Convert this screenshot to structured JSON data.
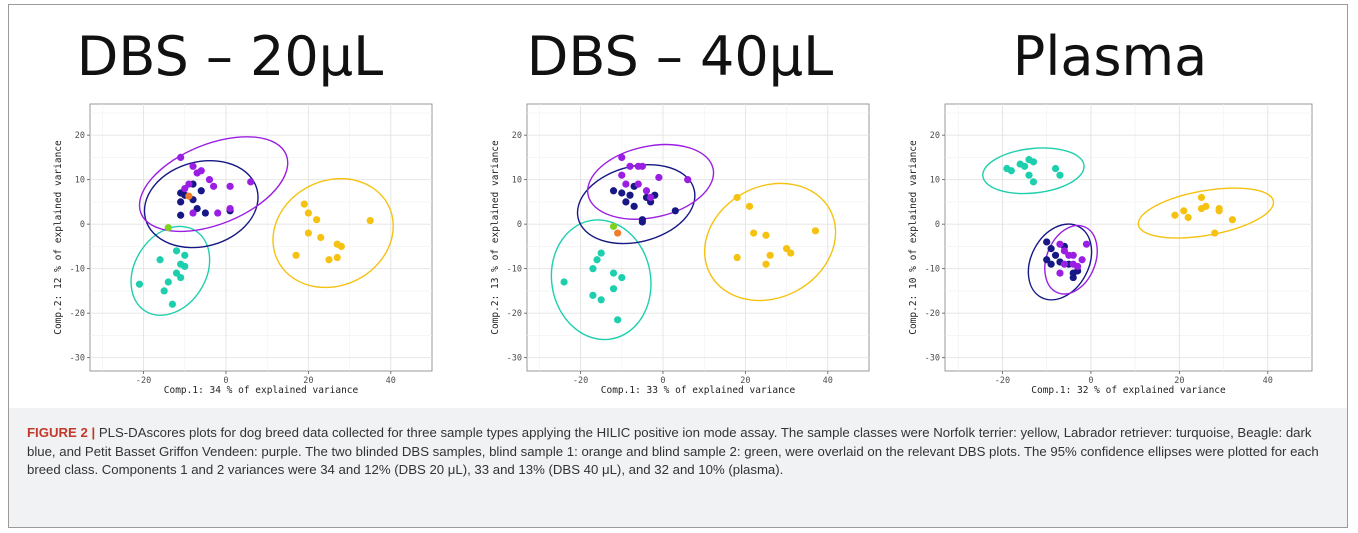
{
  "panels": [
    {
      "title": "DBS – 20μL",
      "xlabel": "Comp.1: 34 % of explained variance",
      "ylabel": "Comp.2: 12 % of explained variance"
    },
    {
      "title": "DBS – 40μL",
      "xlabel": "Comp.1: 33 % of explained variance",
      "ylabel": "Comp.2: 13 % of explained variance"
    },
    {
      "title": "Plasma",
      "xlabel": "Comp.1: 32 % of explained variance",
      "ylabel": "Comp.2: 10 % of explained variance"
    }
  ],
  "caption": {
    "label": "FIGURE 2 |",
    "text": " PLS-DAscores plots for dog breed data collected for three sample types applying the HILIC positive ion mode assay. The sample classes were Norfolk terrier: yellow, Labrador retriever: turquoise, Beagle: dark blue, and Petit Basset Griffon Vendeen: purple. The two blinded DBS samples, blind sample 1: orange and blind sample 2: green, were overlaid on the relevant DBS plots. The 95% confidence ellipses were plotted for each breed class. Components 1 and 2 variances were 34 and 12% (DBS 20 μL), 33 and 13% (DBS 40 μL), and 32 and 10% (plasma)."
  },
  "colors": {
    "yellow": "#f5c211",
    "turquoise": "#1ecfae",
    "darkblue": "#171785",
    "purple": "#9b1ee3",
    "orange": "#f07d2a",
    "green": "#7ed321"
  },
  "chart_data": [
    {
      "type": "scatter",
      "title": "DBS – 20μL",
      "xlabel": "Comp.1: 34 % of explained variance",
      "ylabel": "Comp.2: 12 % of explained variance",
      "xlim": [
        -33,
        50
      ],
      "ylim": [
        -33,
        27
      ],
      "xticks": [
        -20,
        0,
        20,
        40
      ],
      "yticks": [
        -30,
        -20,
        -10,
        0,
        10,
        20
      ],
      "grid": true,
      "series": [
        {
          "color": "#f5c211",
          "points": [
            [
              19,
              4.5
            ],
            [
              20,
              2.5
            ],
            [
              22,
              1
            ],
            [
              20,
              -2
            ],
            [
              17,
              -7
            ],
            [
              23,
              -3
            ],
            [
              27,
              -4.5
            ],
            [
              28,
              -5
            ],
            [
              27,
              -7.5
            ],
            [
              25,
              -8
            ],
            [
              35,
              0.8
            ]
          ],
          "ellipse": {
            "cx": 26,
            "cy": -2,
            "rx": 15,
            "ry": 11.8,
            "angle": -26
          }
        },
        {
          "color": "#1ecfae",
          "points": [
            [
              -21,
              -13.5
            ],
            [
              -16,
              -8
            ],
            [
              -15,
              -15
            ],
            [
              -14,
              -13
            ],
            [
              -13,
              -18
            ],
            [
              -12,
              -6
            ],
            [
              -12,
              -11
            ],
            [
              -11,
              -9
            ],
            [
              -11,
              -12
            ],
            [
              -10,
              -7
            ],
            [
              -10,
              -9.5
            ]
          ],
          "ellipse": {
            "cx": -13.5,
            "cy": -10.5,
            "rx": 11.5,
            "ry": 8,
            "angle": -58
          }
        },
        {
          "color": "#171785",
          "points": [
            [
              -11,
              7
            ],
            [
              -11,
              5
            ],
            [
              -10,
              6.5
            ],
            [
              -8,
              5.5
            ],
            [
              -11,
              2
            ],
            [
              -7,
              3.5
            ],
            [
              -5,
              2.5
            ],
            [
              -6,
              7.5
            ],
            [
              -8,
              9
            ],
            [
              1,
              3
            ]
          ],
          "ellipse": {
            "cx": -6,
            "cy": 4.5,
            "rx": 14,
            "ry": 9.5,
            "angle": -15
          }
        },
        {
          "color": "#9b1ee3",
          "points": [
            [
              -11,
              15
            ],
            [
              -8,
              13
            ],
            [
              -7,
              11.5
            ],
            [
              -6,
              12
            ],
            [
              -4,
              10
            ],
            [
              -3,
              8.5
            ],
            [
              -9,
              9
            ],
            [
              -10,
              8
            ],
            [
              -2,
              2.5
            ],
            [
              1,
              8.5
            ],
            [
              1,
              3.5
            ],
            [
              6,
              9.5
            ],
            [
              -8,
              2.5
            ]
          ],
          "ellipse": {
            "cx": -3,
            "cy": 9,
            "rx": 19,
            "ry": 9,
            "angle": -22
          }
        },
        {
          "color": "#f07d2a",
          "points": [
            [
              -9,
              6.3
            ]
          ]
        },
        {
          "color": "#7ed321",
          "points": [
            [
              -14,
              -0.8
            ]
          ]
        }
      ]
    },
    {
      "type": "scatter",
      "title": "DBS – 40μL",
      "xlabel": "Comp.1: 33 % of explained variance",
      "ylabel": "Comp.2: 13 % of explained variance",
      "xlim": [
        -33,
        50
      ],
      "ylim": [
        -33,
        27
      ],
      "xticks": [
        -20,
        0,
        20,
        40
      ],
      "yticks": [
        -30,
        -20,
        -10,
        0,
        10,
        20
      ],
      "grid": true,
      "series": [
        {
          "color": "#f5c211",
          "points": [
            [
              18,
              6
            ],
            [
              21,
              4
            ],
            [
              18,
              -7.5
            ],
            [
              22,
              -2
            ],
            [
              25,
              -2.5
            ],
            [
              26,
              -7
            ],
            [
              25,
              -9
            ],
            [
              30,
              -5.5
            ],
            [
              31,
              -6.5
            ],
            [
              37,
              -1.5
            ]
          ],
          "ellipse": {
            "cx": 26,
            "cy": -4,
            "rx": 16.5,
            "ry": 12.5,
            "angle": -28
          }
        },
        {
          "color": "#1ecfae",
          "points": [
            [
              -24,
              -13
            ],
            [
              -17,
              -10
            ],
            [
              -16,
              -8
            ],
            [
              -15,
              -6.5
            ],
            [
              -17,
              -16
            ],
            [
              -15,
              -17
            ],
            [
              -12,
              -11
            ],
            [
              -12,
              -14.5
            ],
            [
              -10,
              -12
            ],
            [
              -11,
              -21.5
            ]
          ],
          "ellipse": {
            "cx": -15,
            "cy": -12.5,
            "rx": 12,
            "ry": 13.5,
            "angle": -10
          }
        },
        {
          "color": "#171785",
          "points": [
            [
              -12,
              7.5
            ],
            [
              -10,
              7
            ],
            [
              -8,
              6.5
            ],
            [
              -7,
              8.5
            ],
            [
              -9,
              5
            ],
            [
              -7,
              4
            ],
            [
              -5,
              1
            ],
            [
              -5,
              0.5
            ],
            [
              -4,
              6
            ],
            [
              -2,
              6.5
            ],
            [
              -3,
              5
            ],
            [
              3,
              3
            ]
          ],
          "ellipse": {
            "cx": -6.5,
            "cy": 4.5,
            "rx": 14.5,
            "ry": 8.5,
            "angle": -14
          }
        },
        {
          "color": "#9b1ee3",
          "points": [
            [
              -10,
              15
            ],
            [
              -8,
              13
            ],
            [
              -6,
              13
            ],
            [
              -5,
              13
            ],
            [
              -10,
              11
            ],
            [
              -9,
              9
            ],
            [
              -4,
              7.5
            ],
            [
              -3,
              6
            ],
            [
              -1,
              10.5
            ],
            [
              -6,
              9
            ],
            [
              6,
              10
            ]
          ],
          "ellipse": {
            "cx": -3,
            "cy": 9.5,
            "rx": 15.5,
            "ry": 8,
            "angle": -12
          }
        },
        {
          "color": "#f07d2a",
          "points": [
            [
              -11,
              -2
            ]
          ]
        },
        {
          "color": "#7ed321",
          "points": [
            [
              -12,
              -0.5
            ]
          ]
        }
      ]
    },
    {
      "type": "scatter",
      "title": "Plasma",
      "xlabel": "Comp.1: 32 % of explained variance",
      "ylabel": "Comp.2: 10 % of explained variance",
      "xlim": [
        -33,
        50
      ],
      "ylim": [
        -33,
        27
      ],
      "xticks": [
        -20,
        0,
        20,
        40
      ],
      "yticks": [
        -30,
        -20,
        -10,
        0,
        10,
        20
      ],
      "grid": true,
      "series": [
        {
          "color": "#f5c211",
          "points": [
            [
              19,
              2
            ],
            [
              21,
              3
            ],
            [
              22,
              1.5
            ],
            [
              25,
              6
            ],
            [
              25,
              3.5
            ],
            [
              26,
              4
            ],
            [
              28,
              -2
            ],
            [
              29,
              3.5
            ],
            [
              29,
              3
            ],
            [
              32,
              1
            ]
          ],
          "ellipse": {
            "cx": 26,
            "cy": 2.5,
            "rx": 15.5,
            "ry": 5,
            "angle": -10
          }
        },
        {
          "color": "#1ecfae",
          "points": [
            [
              -19,
              12.5
            ],
            [
              -18,
              12
            ],
            [
              -16,
              13.5
            ],
            [
              -15,
              13
            ],
            [
              -14,
              14.5
            ],
            [
              -13,
              14
            ],
            [
              -14,
              11
            ],
            [
              -13,
              9.5
            ],
            [
              -8,
              12.5
            ],
            [
              -7,
              11
            ]
          ],
          "ellipse": {
            "cx": -13,
            "cy": 12,
            "rx": 11.5,
            "ry": 5,
            "angle": -6
          }
        },
        {
          "color": "#171785",
          "points": [
            [
              -10,
              -4
            ],
            [
              -9,
              -5.5
            ],
            [
              -8,
              -7
            ],
            [
              -10,
              -8
            ],
            [
              -7,
              -8.5
            ],
            [
              -6,
              -5
            ],
            [
              -5,
              -9
            ],
            [
              -4,
              -11
            ],
            [
              -4,
              -12
            ],
            [
              -3,
              -10.5
            ],
            [
              -9,
              -9
            ]
          ],
          "ellipse": {
            "cx": -7,
            "cy": -8.5,
            "rx": 6.5,
            "ry": 9,
            "angle": 28
          }
        },
        {
          "color": "#9b1ee3",
          "points": [
            [
              -7,
              -4.5
            ],
            [
              -6,
              -6
            ],
            [
              -5,
              -7
            ],
            [
              -4,
              -7
            ],
            [
              -6,
              -9
            ],
            [
              -4,
              -9
            ],
            [
              -2,
              -8
            ],
            [
              -7,
              -11
            ],
            [
              -1,
              -4.5
            ],
            [
              -3,
              -9.5
            ]
          ],
          "ellipse": {
            "cx": -4.5,
            "cy": -8,
            "rx": 5.5,
            "ry": 8,
            "angle": 22
          }
        }
      ]
    }
  ]
}
